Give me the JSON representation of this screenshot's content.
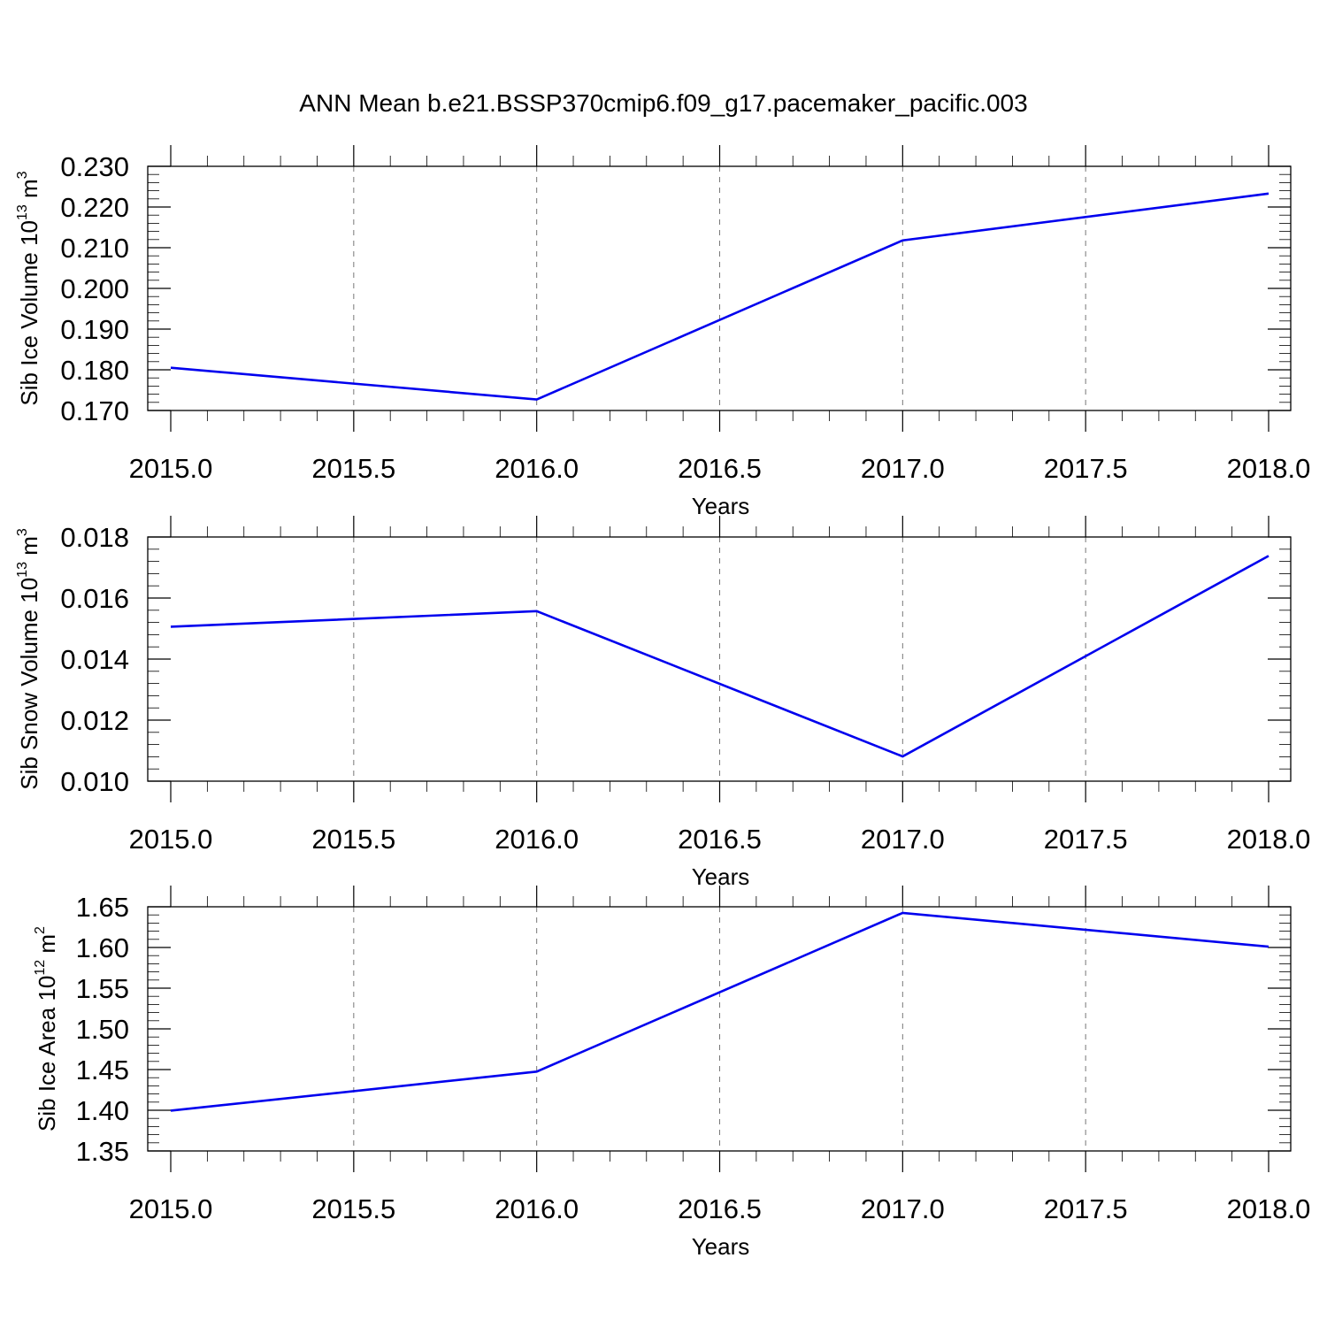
{
  "title": "ANN Mean b.e21.BSSP370cmip6.f09_g17.pacemaker_pacific.003",
  "chart_data": [
    {
      "type": "line",
      "x": [
        2015,
        2016,
        2017,
        2018
      ],
      "series": [
        {
          "values": [
            0.1805,
            0.1727,
            0.2118,
            0.2233
          ]
        }
      ],
      "xlabel": "Years",
      "ylabel": {
        "text": "Sib Ice Volume 10",
        "exp": "13",
        "unit": " m",
        "unit_exp": "3"
      },
      "xlim": [
        2015,
        2018
      ],
      "ylim": [
        0.17,
        0.23
      ],
      "xticks": [
        2015.0,
        2015.5,
        2016.0,
        2016.5,
        2017.0,
        2017.5,
        2018.0
      ],
      "xtick_labels": [
        "2015.0",
        "2015.5",
        "2016.0",
        "2016.5",
        "2017.0",
        "2017.5",
        "2018.0"
      ],
      "yticks": [
        0.17,
        0.18,
        0.19,
        0.2,
        0.21,
        0.22,
        0.23
      ],
      "ytick_labels": [
        "0.170",
        "0.180",
        "0.190",
        "0.200",
        "0.210",
        "0.220",
        "0.230"
      ],
      "y_minor_step": 0.002,
      "grid": "vertical dashed at x ticks",
      "color": "#0000ee"
    },
    {
      "type": "line",
      "x": [
        2015,
        2016,
        2017,
        2018
      ],
      "series": [
        {
          "values": [
            0.01506,
            0.01557,
            0.01081,
            0.01738
          ]
        }
      ],
      "xlabel": "Years",
      "ylabel": {
        "text": "Sib Snow Volume 10",
        "exp": "13",
        "unit": " m",
        "unit_exp": "3"
      },
      "xlim": [
        2015,
        2018
      ],
      "ylim": [
        0.01,
        0.018
      ],
      "xticks": [
        2015.0,
        2015.5,
        2016.0,
        2016.5,
        2017.0,
        2017.5,
        2018.0
      ],
      "xtick_labels": [
        "2015.0",
        "2015.5",
        "2016.0",
        "2016.5",
        "2017.0",
        "2017.5",
        "2018.0"
      ],
      "yticks": [
        0.01,
        0.012,
        0.014,
        0.016,
        0.018
      ],
      "ytick_labels": [
        "0.010",
        "0.012",
        "0.014",
        "0.016",
        "0.018"
      ],
      "y_minor_step": 0.0004,
      "grid": "vertical dashed at x ticks",
      "color": "#0000ee"
    },
    {
      "type": "line",
      "x": [
        2015,
        2016,
        2017,
        2018
      ],
      "series": [
        {
          "values": [
            1.3995,
            1.4475,
            1.6425,
            1.601
          ]
        }
      ],
      "xlabel": "Years",
      "ylabel": {
        "text": "Sib Ice Area 10",
        "exp": "12",
        "unit": " m",
        "unit_exp": "2"
      },
      "xlim": [
        2015,
        2018
      ],
      "ylim": [
        1.35,
        1.65
      ],
      "xticks": [
        2015.0,
        2015.5,
        2016.0,
        2016.5,
        2017.0,
        2017.5,
        2018.0
      ],
      "xtick_labels": [
        "2015.0",
        "2015.5",
        "2016.0",
        "2016.5",
        "2017.0",
        "2017.5",
        "2018.0"
      ],
      "yticks": [
        1.35,
        1.4,
        1.45,
        1.5,
        1.55,
        1.6,
        1.65
      ],
      "ytick_labels": [
        "1.35",
        "1.40",
        "1.45",
        "1.50",
        "1.55",
        "1.60",
        "1.65"
      ],
      "y_minor_step": 0.01,
      "grid": "vertical dashed at x ticks",
      "color": "#0000ee"
    }
  ]
}
